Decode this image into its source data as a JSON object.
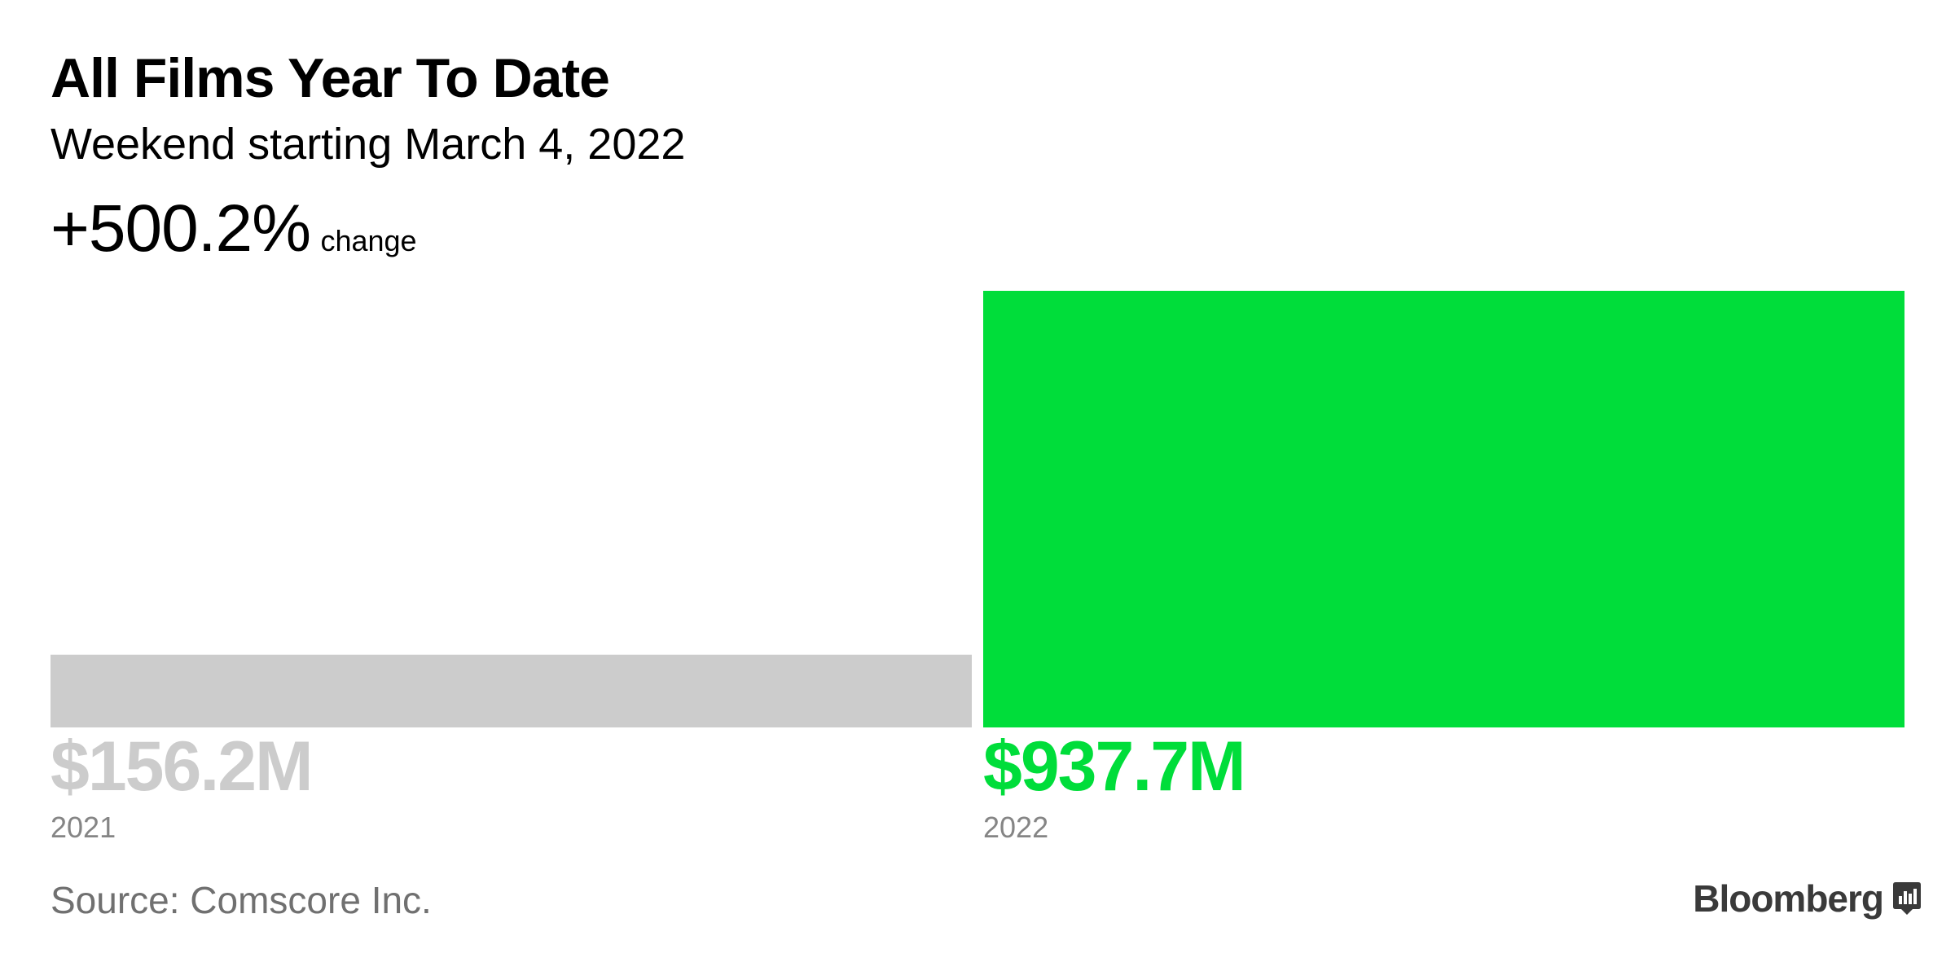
{
  "header": {
    "title": "All Films Year To Date",
    "subtitle": "Weekend starting March 4, 2022",
    "change_value": "+500.2%",
    "change_label": "change"
  },
  "chart_data": {
    "type": "bar",
    "title": "All Films Year To Date",
    "subtitle": "Weekend starting March 4, 2022",
    "categories": [
      "2021",
      "2022"
    ],
    "values": [
      156.2,
      937.7
    ],
    "value_labels": [
      "$156.2M",
      "$937.7M"
    ],
    "unit": "$M",
    "colors": [
      "#cccccc",
      "#00dd3a"
    ],
    "ylim": [
      0,
      937.7
    ],
    "grid": false,
    "xlabel": "",
    "ylabel": ""
  },
  "footer": {
    "source": "Source: Comscore Inc.",
    "brand": "Bloomberg",
    "brand_icon": "bloomberg-chart-icon"
  }
}
